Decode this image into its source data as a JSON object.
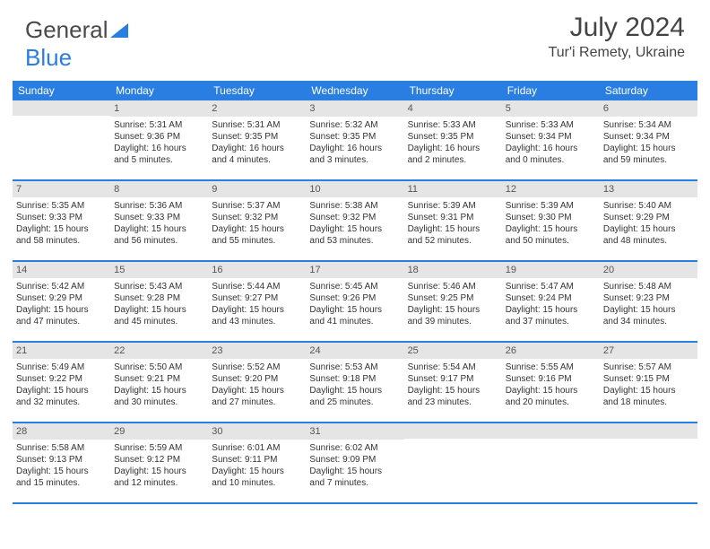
{
  "logo": {
    "part1": "General",
    "part2": "Blue"
  },
  "header": {
    "month_year": "July 2024",
    "location": "Tur'i Remety, Ukraine"
  },
  "calendar": {
    "type": "table",
    "header_bg": "#2a7de1",
    "header_fg": "#ffffff",
    "numrow_bg": "#e5e5e5",
    "border_color": "#2a7de1",
    "text_color": "#333333",
    "font_size_body": 10,
    "font_size_header": 12,
    "day_names": [
      "Sunday",
      "Monday",
      "Tuesday",
      "Wednesday",
      "Thursday",
      "Friday",
      "Saturday"
    ],
    "weeks": [
      [
        {
          "day": "",
          "lines": []
        },
        {
          "day": "1",
          "lines": [
            "Sunrise: 5:31 AM",
            "Sunset: 9:36 PM",
            "Daylight: 16 hours",
            "and 5 minutes."
          ]
        },
        {
          "day": "2",
          "lines": [
            "Sunrise: 5:31 AM",
            "Sunset: 9:35 PM",
            "Daylight: 16 hours",
            "and 4 minutes."
          ]
        },
        {
          "day": "3",
          "lines": [
            "Sunrise: 5:32 AM",
            "Sunset: 9:35 PM",
            "Daylight: 16 hours",
            "and 3 minutes."
          ]
        },
        {
          "day": "4",
          "lines": [
            "Sunrise: 5:33 AM",
            "Sunset: 9:35 PM",
            "Daylight: 16 hours",
            "and 2 minutes."
          ]
        },
        {
          "day": "5",
          "lines": [
            "Sunrise: 5:33 AM",
            "Sunset: 9:34 PM",
            "Daylight: 16 hours",
            "and 0 minutes."
          ]
        },
        {
          "day": "6",
          "lines": [
            "Sunrise: 5:34 AM",
            "Sunset: 9:34 PM",
            "Daylight: 15 hours",
            "and 59 minutes."
          ]
        }
      ],
      [
        {
          "day": "7",
          "lines": [
            "Sunrise: 5:35 AM",
            "Sunset: 9:33 PM",
            "Daylight: 15 hours",
            "and 58 minutes."
          ]
        },
        {
          "day": "8",
          "lines": [
            "Sunrise: 5:36 AM",
            "Sunset: 9:33 PM",
            "Daylight: 15 hours",
            "and 56 minutes."
          ]
        },
        {
          "day": "9",
          "lines": [
            "Sunrise: 5:37 AM",
            "Sunset: 9:32 PM",
            "Daylight: 15 hours",
            "and 55 minutes."
          ]
        },
        {
          "day": "10",
          "lines": [
            "Sunrise: 5:38 AM",
            "Sunset: 9:32 PM",
            "Daylight: 15 hours",
            "and 53 minutes."
          ]
        },
        {
          "day": "11",
          "lines": [
            "Sunrise: 5:39 AM",
            "Sunset: 9:31 PM",
            "Daylight: 15 hours",
            "and 52 minutes."
          ]
        },
        {
          "day": "12",
          "lines": [
            "Sunrise: 5:39 AM",
            "Sunset: 9:30 PM",
            "Daylight: 15 hours",
            "and 50 minutes."
          ]
        },
        {
          "day": "13",
          "lines": [
            "Sunrise: 5:40 AM",
            "Sunset: 9:29 PM",
            "Daylight: 15 hours",
            "and 48 minutes."
          ]
        }
      ],
      [
        {
          "day": "14",
          "lines": [
            "Sunrise: 5:42 AM",
            "Sunset: 9:29 PM",
            "Daylight: 15 hours",
            "and 47 minutes."
          ]
        },
        {
          "day": "15",
          "lines": [
            "Sunrise: 5:43 AM",
            "Sunset: 9:28 PM",
            "Daylight: 15 hours",
            "and 45 minutes."
          ]
        },
        {
          "day": "16",
          "lines": [
            "Sunrise: 5:44 AM",
            "Sunset: 9:27 PM",
            "Daylight: 15 hours",
            "and 43 minutes."
          ]
        },
        {
          "day": "17",
          "lines": [
            "Sunrise: 5:45 AM",
            "Sunset: 9:26 PM",
            "Daylight: 15 hours",
            "and 41 minutes."
          ]
        },
        {
          "day": "18",
          "lines": [
            "Sunrise: 5:46 AM",
            "Sunset: 9:25 PM",
            "Daylight: 15 hours",
            "and 39 minutes."
          ]
        },
        {
          "day": "19",
          "lines": [
            "Sunrise: 5:47 AM",
            "Sunset: 9:24 PM",
            "Daylight: 15 hours",
            "and 37 minutes."
          ]
        },
        {
          "day": "20",
          "lines": [
            "Sunrise: 5:48 AM",
            "Sunset: 9:23 PM",
            "Daylight: 15 hours",
            "and 34 minutes."
          ]
        }
      ],
      [
        {
          "day": "21",
          "lines": [
            "Sunrise: 5:49 AM",
            "Sunset: 9:22 PM",
            "Daylight: 15 hours",
            "and 32 minutes."
          ]
        },
        {
          "day": "22",
          "lines": [
            "Sunrise: 5:50 AM",
            "Sunset: 9:21 PM",
            "Daylight: 15 hours",
            "and 30 minutes."
          ]
        },
        {
          "day": "23",
          "lines": [
            "Sunrise: 5:52 AM",
            "Sunset: 9:20 PM",
            "Daylight: 15 hours",
            "and 27 minutes."
          ]
        },
        {
          "day": "24",
          "lines": [
            "Sunrise: 5:53 AM",
            "Sunset: 9:18 PM",
            "Daylight: 15 hours",
            "and 25 minutes."
          ]
        },
        {
          "day": "25",
          "lines": [
            "Sunrise: 5:54 AM",
            "Sunset: 9:17 PM",
            "Daylight: 15 hours",
            "and 23 minutes."
          ]
        },
        {
          "day": "26",
          "lines": [
            "Sunrise: 5:55 AM",
            "Sunset: 9:16 PM",
            "Daylight: 15 hours",
            "and 20 minutes."
          ]
        },
        {
          "day": "27",
          "lines": [
            "Sunrise: 5:57 AM",
            "Sunset: 9:15 PM",
            "Daylight: 15 hours",
            "and 18 minutes."
          ]
        }
      ],
      [
        {
          "day": "28",
          "lines": [
            "Sunrise: 5:58 AM",
            "Sunset: 9:13 PM",
            "Daylight: 15 hours",
            "and 15 minutes."
          ]
        },
        {
          "day": "29",
          "lines": [
            "Sunrise: 5:59 AM",
            "Sunset: 9:12 PM",
            "Daylight: 15 hours",
            "and 12 minutes."
          ]
        },
        {
          "day": "30",
          "lines": [
            "Sunrise: 6:01 AM",
            "Sunset: 9:11 PM",
            "Daylight: 15 hours",
            "and 10 minutes."
          ]
        },
        {
          "day": "31",
          "lines": [
            "Sunrise: 6:02 AM",
            "Sunset: 9:09 PM",
            "Daylight: 15 hours",
            "and 7 minutes."
          ]
        },
        {
          "day": "",
          "lines": []
        },
        {
          "day": "",
          "lines": []
        },
        {
          "day": "",
          "lines": []
        }
      ]
    ]
  }
}
